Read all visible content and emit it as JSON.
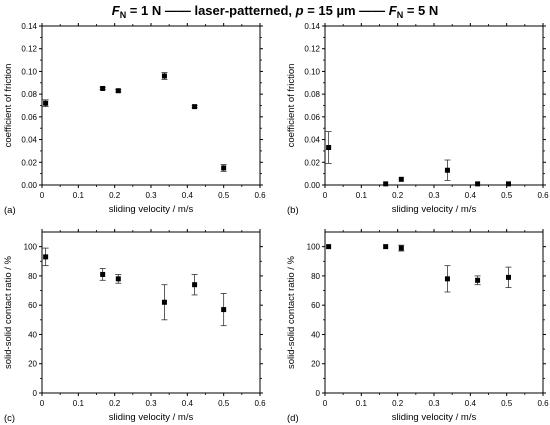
{
  "header": {
    "left_prefix": "F",
    "left_sub": "N",
    "left_value": " = 1 N",
    "center_prefix": "laser-patterned, ",
    "center_p": "p",
    "center_value": " = 15 µm",
    "right_prefix": "F",
    "right_sub": "N",
    "right_value": " = 5 N"
  },
  "chart_data": [
    {
      "type": "scatter",
      "panel_label": "(a)",
      "xlabel": "sliding velocity / m/s",
      "ylabel": "coefficient of friction",
      "xlim": [
        0,
        0.6
      ],
      "ylim": [
        0,
        0.14
      ],
      "x_ticks": [
        "0",
        "0.1",
        "0.2",
        "0.3",
        "0.4",
        "0.5",
        "0.6"
      ],
      "y_ticks": [
        "0.00",
        "0.02",
        "0.04",
        "0.06",
        "0.08",
        "0.10",
        "0.12",
        "0.14"
      ],
      "x": [
        0.01,
        0.167,
        0.21,
        0.337,
        0.42,
        0.5
      ],
      "y": [
        0.072,
        0.085,
        0.083,
        0.096,
        0.069,
        0.015
      ],
      "err": [
        0.003,
        0.001,
        0.001,
        0.003,
        0.001,
        0.003
      ],
      "marker": "square"
    },
    {
      "type": "scatter",
      "panel_label": "(b)",
      "xlabel": "sliding velocity / m/s",
      "ylabel": "coefficient of friction",
      "xlim": [
        0,
        0.6
      ],
      "ylim": [
        0,
        0.14
      ],
      "x_ticks": [
        "0",
        "0.1",
        "0.2",
        "0.3",
        "0.4",
        "0.5",
        "0.6"
      ],
      "y_ticks": [
        "0.00",
        "0.02",
        "0.04",
        "0.06",
        "0.08",
        "0.10",
        "0.12",
        "0.14"
      ],
      "x": [
        0.01,
        0.167,
        0.21,
        0.337,
        0.42,
        0.505
      ],
      "y": [
        0.033,
        0.001,
        0.005,
        0.013,
        0.001,
        0.001
      ],
      "err": [
        0.014,
        0.0,
        0.0,
        0.009,
        0.0,
        0.0
      ],
      "marker": "square"
    },
    {
      "type": "scatter",
      "panel_label": "(c)",
      "xlabel": "sliding velocity / m/s",
      "ylabel": "solid-solid contact ratio / %",
      "xlim": [
        0,
        0.6
      ],
      "ylim": [
        0,
        110
      ],
      "x_ticks": [
        "0",
        "0.1",
        "0.2",
        "0.3",
        "0.4",
        "0.5",
        "0.6"
      ],
      "y_ticks": [
        "0",
        "20",
        "40",
        "60",
        "80",
        "100"
      ],
      "x": [
        0.01,
        0.167,
        0.21,
        0.337,
        0.42,
        0.5
      ],
      "y": [
        93,
        81,
        78,
        62,
        74,
        57
      ],
      "err": [
        6,
        4,
        3,
        12,
        7,
        11
      ],
      "marker": "square"
    },
    {
      "type": "scatter",
      "panel_label": "(d)",
      "xlabel": "sliding velocity / m/s",
      "ylabel": "solid-solid contact ratio / %",
      "xlim": [
        0,
        0.6
      ],
      "ylim": [
        0,
        110
      ],
      "x_ticks": [
        "0",
        "0.1",
        "0.2",
        "0.3",
        "0.4",
        "0.5",
        "0.6"
      ],
      "y_ticks": [
        "0",
        "20",
        "40",
        "60",
        "80",
        "100"
      ],
      "x": [
        0.01,
        0.167,
        0.21,
        0.337,
        0.42,
        0.505
      ],
      "y": [
        100,
        100,
        99,
        78,
        77,
        79
      ],
      "err": [
        0,
        0,
        2,
        9,
        3,
        7
      ],
      "marker": "square"
    }
  ]
}
